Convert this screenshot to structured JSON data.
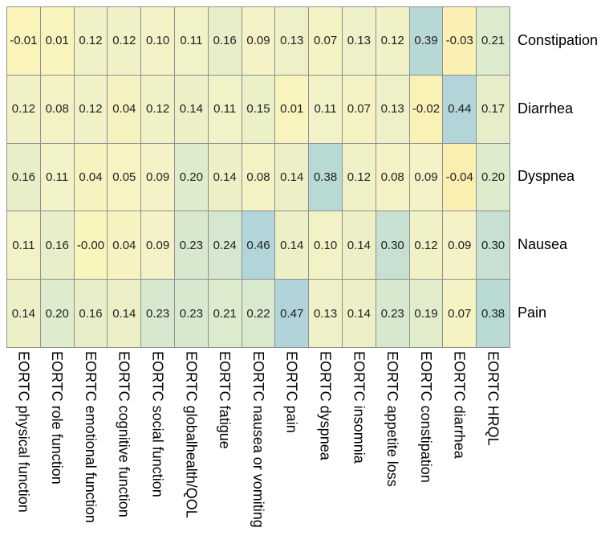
{
  "chart_data": {
    "type": "heatmap",
    "title": "",
    "legend": "none",
    "row_labels_position": "right",
    "column_labels_position": "bottom",
    "column_labels_rotation": "90deg-clockwise",
    "background": "#ffffff",
    "grid_line_color": "#8f8f8f",
    "cell_text_color": "#1f1f1f",
    "label_text_color": "#000000",
    "rows": [
      "Constipation",
      "Diarrhea",
      "Dyspnea",
      "Nausea",
      "Pain"
    ],
    "columns": [
      "EORTC physical function",
      "EORTC role function",
      "EORTC emotional function",
      "EORTC cognitive function",
      "EORTC social function",
      "EORTC globalhealth/QOL",
      "EORTC fatigue",
      "EORTC nausea or vomiting",
      "EORTC pain",
      "EORTC dyspnea",
      "EORTC insomnia",
      "EORTC appetite loss",
      "EORTC constipation",
      "EORTC diarrhea",
      "EORTC HRQL"
    ],
    "values": [
      [
        -0.01,
        0.01,
        0.12,
        0.12,
        0.1,
        0.11,
        0.16,
        0.09,
        0.13,
        0.07,
        0.13,
        0.12,
        0.39,
        -0.03,
        0.21
      ],
      [
        0.12,
        0.08,
        0.12,
        0.04,
        0.12,
        0.14,
        0.11,
        0.15,
        0.01,
        0.11,
        0.07,
        0.13,
        -0.02,
        0.44,
        0.17
      ],
      [
        0.16,
        0.11,
        0.04,
        0.05,
        0.09,
        0.2,
        0.14,
        0.08,
        0.14,
        0.38,
        0.12,
        0.08,
        0.09,
        -0.04,
        0.2
      ],
      [
        0.11,
        0.16,
        -0.0,
        0.04,
        0.09,
        0.23,
        0.24,
        0.46,
        0.14,
        0.1,
        0.14,
        0.3,
        0.12,
        0.09,
        0.3
      ],
      [
        0.14,
        0.2,
        0.16,
        0.14,
        0.23,
        0.23,
        0.21,
        0.22,
        0.47,
        0.13,
        0.14,
        0.23,
        0.19,
        0.07,
        0.38
      ]
    ],
    "cell_text": [
      [
        "-0.01",
        "0.01",
        "0.12",
        "0.12",
        "0.10",
        "0.11",
        "0.16",
        "0.09",
        "0.13",
        "0.07",
        "0.13",
        "0.12",
        "0.39",
        "-0.03",
        "0.21"
      ],
      [
        "0.12",
        "0.08",
        "0.12",
        "0.04",
        "0.12",
        "0.14",
        "0.11",
        "0.15",
        "0.01",
        "0.11",
        "0.07",
        "0.13",
        "-0.02",
        "0.44",
        "0.17"
      ],
      [
        "0.16",
        "0.11",
        "0.04",
        "0.05",
        "0.09",
        "0.20",
        "0.14",
        "0.08",
        "0.14",
        "0.38",
        "0.12",
        "0.08",
        "0.09",
        "-0.04",
        "0.20"
      ],
      [
        "0.11",
        "0.16",
        "-0.00",
        "0.04",
        "0.09",
        "0.23",
        "0.24",
        "0.46",
        "0.14",
        "0.10",
        "0.14",
        "0.30",
        "0.12",
        "0.09",
        "0.30"
      ],
      [
        "0.14",
        "0.20",
        "0.16",
        "0.14",
        "0.23",
        "0.23",
        "0.21",
        "0.22",
        "0.47",
        "0.13",
        "0.14",
        "0.23",
        "0.19",
        "0.07",
        "0.38"
      ]
    ],
    "value_range": [
      -0.05,
      0.5
    ],
    "colormap": {
      "description": "yellow -> pale green -> teal blue",
      "stops": [
        {
          "v": -0.05,
          "color": "#faedae"
        },
        {
          "v": 0.0,
          "color": "#faf4bd"
        },
        {
          "v": 0.1,
          "color": "#f3f2c7"
        },
        {
          "v": 0.15,
          "color": "#ebf0c7"
        },
        {
          "v": 0.2,
          "color": "#deebcc"
        },
        {
          "v": 0.3,
          "color": "#c7e0d1"
        },
        {
          "v": 0.4,
          "color": "#b6d7d5"
        },
        {
          "v": 0.5,
          "color": "#afd3de"
        }
      ]
    }
  }
}
